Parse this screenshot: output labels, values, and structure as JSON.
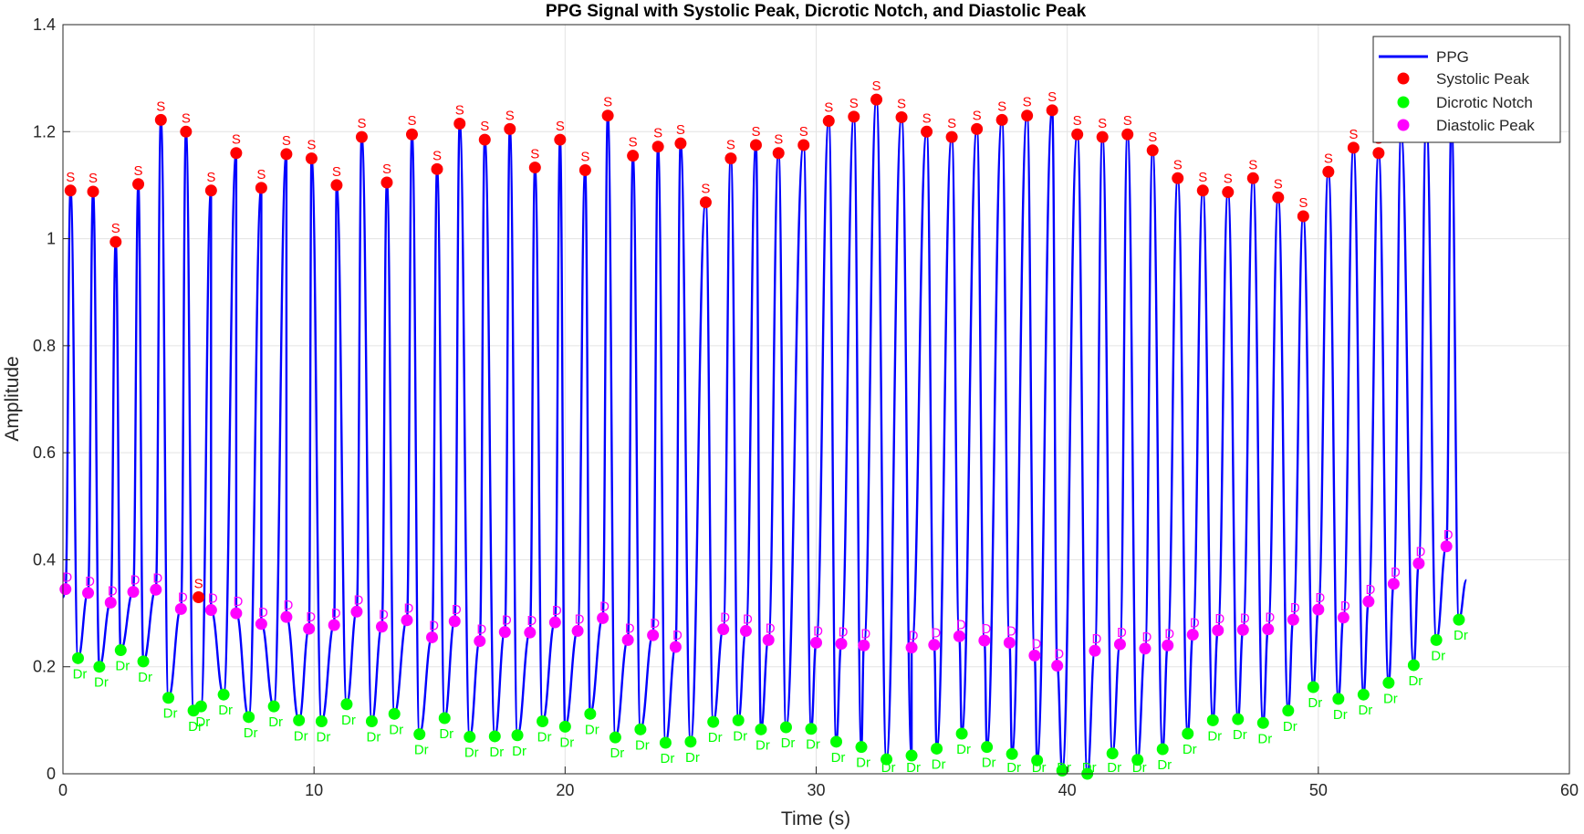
{
  "chart_data": {
    "type": "line",
    "title": "PPG Signal with Systolic Peak, Dicrotic Notch, and Diastolic Peak",
    "xlabel": "Time (s)",
    "ylabel": "Amplitude",
    "xlim": [
      0,
      60
    ],
    "ylim": [
      0,
      1.4
    ],
    "xticks": [
      0,
      10,
      20,
      30,
      40,
      50,
      60
    ],
    "yticks": [
      0,
      0.2,
      0.4,
      0.6,
      0.8,
      1,
      1.2,
      1.4
    ],
    "xtick_labels": [
      "0",
      "10",
      "20",
      "30",
      "40",
      "50",
      "60"
    ],
    "ytick_labels": [
      "0",
      "0.2",
      "0.4",
      "0.6",
      "0.8",
      "1",
      "1.2",
      "1.4"
    ],
    "grid": true,
    "legend_position": "top-right",
    "legend": [
      "PPG",
      "Systolic Peak",
      "Dicrotic Notch",
      "Diastolic Peak"
    ],
    "colors": {
      "ppg": "#0000ff",
      "systolic": "#ff0000",
      "dicrotic": "#00ff00",
      "diastolic": "#ff00ff"
    },
    "marker_labels": {
      "systolic": "S",
      "dicrotic": "Dr",
      "diastolic": "D"
    },
    "systolic_peaks": [
      [
        0.3,
        1.09
      ],
      [
        1.2,
        1.088
      ],
      [
        2.1,
        0.994
      ],
      [
        3.0,
        1.102
      ],
      [
        3.9,
        1.222
      ],
      [
        4.9,
        1.2
      ],
      [
        5.9,
        1.09
      ],
      [
        6.9,
        1.16
      ],
      [
        7.9,
        1.095
      ],
      [
        8.9,
        1.158
      ],
      [
        9.9,
        1.15
      ],
      [
        10.9,
        1.1
      ],
      [
        11.9,
        1.19
      ],
      [
        12.9,
        1.105
      ],
      [
        13.9,
        1.195
      ],
      [
        14.9,
        1.13
      ],
      [
        15.8,
        1.215
      ],
      [
        16.8,
        1.185
      ],
      [
        17.8,
        1.205
      ],
      [
        18.8,
        1.133
      ],
      [
        19.8,
        1.185
      ],
      [
        20.8,
        1.128
      ],
      [
        21.7,
        1.23
      ],
      [
        22.7,
        1.155
      ],
      [
        23.7,
        1.172
      ],
      [
        24.6,
        1.178
      ],
      [
        25.6,
        1.068
      ],
      [
        26.6,
        1.15
      ],
      [
        27.6,
        1.175
      ],
      [
        28.5,
        1.16
      ],
      [
        29.5,
        1.175
      ],
      [
        30.5,
        1.22
      ],
      [
        31.5,
        1.228
      ],
      [
        32.4,
        1.26
      ],
      [
        33.4,
        1.227
      ],
      [
        34.4,
        1.2
      ],
      [
        35.4,
        1.19
      ],
      [
        36.4,
        1.205
      ],
      [
        37.4,
        1.222
      ],
      [
        38.4,
        1.23
      ],
      [
        39.4,
        1.24
      ],
      [
        40.4,
        1.195
      ],
      [
        41.4,
        1.19
      ],
      [
        42.4,
        1.195
      ],
      [
        43.4,
        1.165
      ],
      [
        44.4,
        1.113
      ],
      [
        45.4,
        1.09
      ],
      [
        46.4,
        1.087
      ],
      [
        47.4,
        1.113
      ],
      [
        48.4,
        1.077
      ],
      [
        49.4,
        1.042
      ],
      [
        50.4,
        1.125
      ],
      [
        51.4,
        1.17
      ],
      [
        52.4,
        1.16
      ],
      [
        53.3,
        1.195
      ],
      [
        54.3,
        1.22
      ],
      [
        55.3,
        1.22
      ]
    ],
    "extra_systolic_points": [
      [
        5.4,
        0.33
      ]
    ],
    "dicrotic_notches": [
      [
        0.6,
        0.216
      ],
      [
        1.45,
        0.2
      ],
      [
        2.3,
        0.231
      ],
      [
        3.2,
        0.21
      ],
      [
        4.2,
        0.142
      ],
      [
        5.2,
        0.118
      ],
      [
        5.5,
        0.126
      ],
      [
        6.4,
        0.148
      ],
      [
        7.4,
        0.106
      ],
      [
        8.4,
        0.126
      ],
      [
        9.4,
        0.1
      ],
      [
        10.3,
        0.098
      ],
      [
        11.3,
        0.13
      ],
      [
        12.3,
        0.098
      ],
      [
        13.2,
        0.112
      ],
      [
        14.2,
        0.074
      ],
      [
        15.2,
        0.104
      ],
      [
        16.2,
        0.069
      ],
      [
        17.2,
        0.07
      ],
      [
        18.1,
        0.072
      ],
      [
        19.1,
        0.098
      ],
      [
        20.0,
        0.088
      ],
      [
        21.0,
        0.112
      ],
      [
        22.0,
        0.068
      ],
      [
        23.0,
        0.083
      ],
      [
        24.0,
        0.058
      ],
      [
        25.0,
        0.06
      ],
      [
        25.9,
        0.097
      ],
      [
        26.9,
        0.1
      ],
      [
        27.8,
        0.083
      ],
      [
        28.8,
        0.087
      ],
      [
        29.8,
        0.084
      ],
      [
        30.8,
        0.06
      ],
      [
        31.8,
        0.05
      ],
      [
        32.8,
        0.027
      ],
      [
        33.8,
        0.034
      ],
      [
        34.8,
        0.047
      ],
      [
        35.8,
        0.075
      ],
      [
        36.8,
        0.05
      ],
      [
        37.8,
        0.037
      ],
      [
        38.8,
        0.025
      ],
      [
        39.8,
        0.006
      ],
      [
        40.8,
        0.0
      ],
      [
        41.8,
        0.038
      ],
      [
        42.8,
        0.026
      ],
      [
        43.8,
        0.046
      ],
      [
        44.8,
        0.075
      ],
      [
        45.8,
        0.1
      ],
      [
        46.8,
        0.102
      ],
      [
        47.8,
        0.095
      ],
      [
        48.8,
        0.118
      ],
      [
        49.8,
        0.162
      ],
      [
        50.8,
        0.14
      ],
      [
        51.8,
        0.148
      ],
      [
        52.8,
        0.17
      ],
      [
        53.8,
        0.203
      ],
      [
        54.7,
        0.25
      ],
      [
        55.6,
        0.288
      ]
    ],
    "diastolic_peaks": [
      [
        0.1,
        0.345
      ],
      [
        1.0,
        0.338
      ],
      [
        1.9,
        0.32
      ],
      [
        2.8,
        0.34
      ],
      [
        3.7,
        0.344
      ],
      [
        4.7,
        0.308
      ],
      [
        5.9,
        0.306
      ],
      [
        6.9,
        0.3
      ],
      [
        7.9,
        0.28
      ],
      [
        8.9,
        0.293
      ],
      [
        9.8,
        0.271
      ],
      [
        10.8,
        0.278
      ],
      [
        11.7,
        0.303
      ],
      [
        12.7,
        0.275
      ],
      [
        13.7,
        0.287
      ],
      [
        14.7,
        0.255
      ],
      [
        15.6,
        0.285
      ],
      [
        16.6,
        0.248
      ],
      [
        17.6,
        0.265
      ],
      [
        18.6,
        0.264
      ],
      [
        19.6,
        0.283
      ],
      [
        20.5,
        0.267
      ],
      [
        21.5,
        0.291
      ],
      [
        22.5,
        0.25
      ],
      [
        23.5,
        0.259
      ],
      [
        24.4,
        0.237
      ],
      [
        26.3,
        0.27
      ],
      [
        27.2,
        0.267
      ],
      [
        28.1,
        0.25
      ],
      [
        30.0,
        0.245
      ],
      [
        31.0,
        0.243
      ],
      [
        31.9,
        0.24
      ],
      [
        33.8,
        0.236
      ],
      [
        34.7,
        0.241
      ],
      [
        35.7,
        0.257
      ],
      [
        36.7,
        0.249
      ],
      [
        37.7,
        0.245
      ],
      [
        38.7,
        0.221
      ],
      [
        39.6,
        0.202
      ],
      [
        41.1,
        0.23
      ],
      [
        42.1,
        0.242
      ],
      [
        43.1,
        0.234
      ],
      [
        44.0,
        0.24
      ],
      [
        45.0,
        0.26
      ],
      [
        46.0,
        0.268
      ],
      [
        47.0,
        0.269
      ],
      [
        48.0,
        0.27
      ],
      [
        49.0,
        0.288
      ],
      [
        50.0,
        0.307
      ],
      [
        51.0,
        0.292
      ],
      [
        52.0,
        0.322
      ],
      [
        53.0,
        0.355
      ],
      [
        54.0,
        0.393
      ],
      [
        55.1,
        0.425
      ]
    ],
    "signal_end": [
      55.9,
      0.362
    ]
  }
}
